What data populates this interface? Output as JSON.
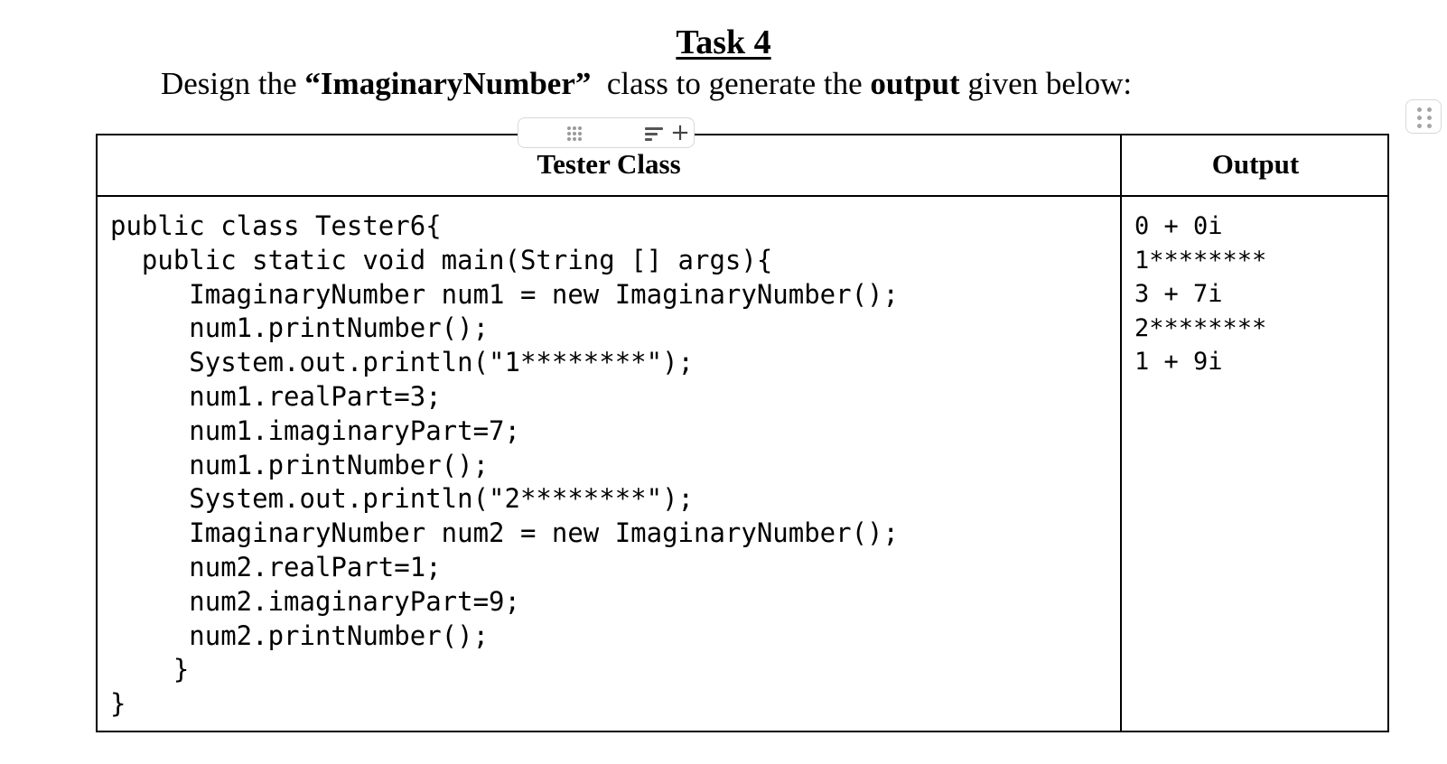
{
  "document": {
    "title": "Task 4",
    "subtitle": {
      "prefix": "Design the ",
      "class_name": "“ImaginaryNumber”",
      "middle": "  class to generate the ",
      "emphasis": "output",
      "suffix": " given below:"
    }
  },
  "table": {
    "headers": {
      "tester": "Tester Class",
      "output": "Output"
    },
    "code_lines": [
      "public class Tester6{",
      "  public static void main(String [] args){",
      "     ImaginaryNumber num1 = new ImaginaryNumber();",
      "     num1.printNumber();",
      "     System.out.println(\"1********\");",
      "     num1.realPart=3;",
      "     num1.imaginaryPart=7;",
      "     num1.printNumber();",
      "     System.out.println(\"2********\");",
      "     ImaginaryNumber num2 = new ImaginaryNumber();",
      "     num2.realPart=1;",
      "     num2.imaginaryPart=9;",
      "     num2.printNumber();",
      "    }",
      "}"
    ],
    "output_lines": [
      "0 + 0i",
      "1********",
      "3 + 7i",
      "2********",
      "1 + 9i"
    ]
  },
  "toolbar": {
    "drag_icon": "drag-handle-icon",
    "filter_icon": "filter-lines-icon",
    "add_label": "+"
  },
  "side_handle": {
    "icon": "block-drag-handle-icon"
  }
}
